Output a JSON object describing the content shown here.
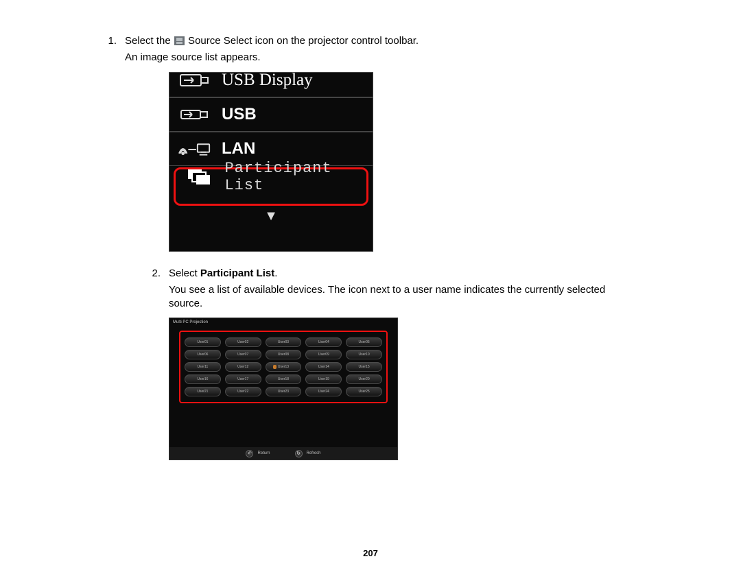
{
  "steps": {
    "s1": {
      "num": "1.",
      "text_before": "Select the ",
      "text_after": " Source Select icon on the projector control toolbar.",
      "followup": "An image source list appears."
    },
    "s2": {
      "num": "2.",
      "text_before": "Select ",
      "bold": "Participant List",
      "text_after": ".",
      "followup": "You see a list of available devices. The icon next to a user name indicates the currently selected source."
    }
  },
  "fig1": {
    "background_color": "#0a0a0a",
    "highlight_color": "#ee1111",
    "text_color": "#ffffff",
    "items": {
      "usb_display": {
        "label": "USB Display"
      },
      "usb": {
        "label": "USB"
      },
      "lan": {
        "label": "LAN"
      },
      "participant": {
        "label": "Participant List"
      }
    },
    "arrow_glyph": "▼"
  },
  "fig2": {
    "title": "Multi PC Projection",
    "highlight_color": "#ee1111",
    "background_color": "#0b0b0b",
    "pill_gradient_top": "#3d3d3d",
    "pill_gradient_bottom": "#141414",
    "cols": 5,
    "rows": 5,
    "users": [
      {
        "label": "User01"
      },
      {
        "label": "User02"
      },
      {
        "label": "User03"
      },
      {
        "label": "User04"
      },
      {
        "label": "User05"
      },
      {
        "label": "User06"
      },
      {
        "label": "User07"
      },
      {
        "label": "User08"
      },
      {
        "label": "User09"
      },
      {
        "label": "User10"
      },
      {
        "label": "User11"
      },
      {
        "label": "User12"
      },
      {
        "label": "User13",
        "selected": true
      },
      {
        "label": "User14"
      },
      {
        "label": "User15"
      },
      {
        "label": "User16"
      },
      {
        "label": "User17"
      },
      {
        "label": "User18"
      },
      {
        "label": "User19"
      },
      {
        "label": "User20"
      },
      {
        "label": "User21"
      },
      {
        "label": "User22"
      },
      {
        "label": "User23"
      },
      {
        "label": "User24"
      },
      {
        "label": "User25"
      }
    ],
    "buttons": {
      "return": {
        "label": "Return",
        "glyph": "↶"
      },
      "refresh": {
        "label": "Refresh",
        "glyph": "↻"
      }
    }
  },
  "page_number": "207"
}
